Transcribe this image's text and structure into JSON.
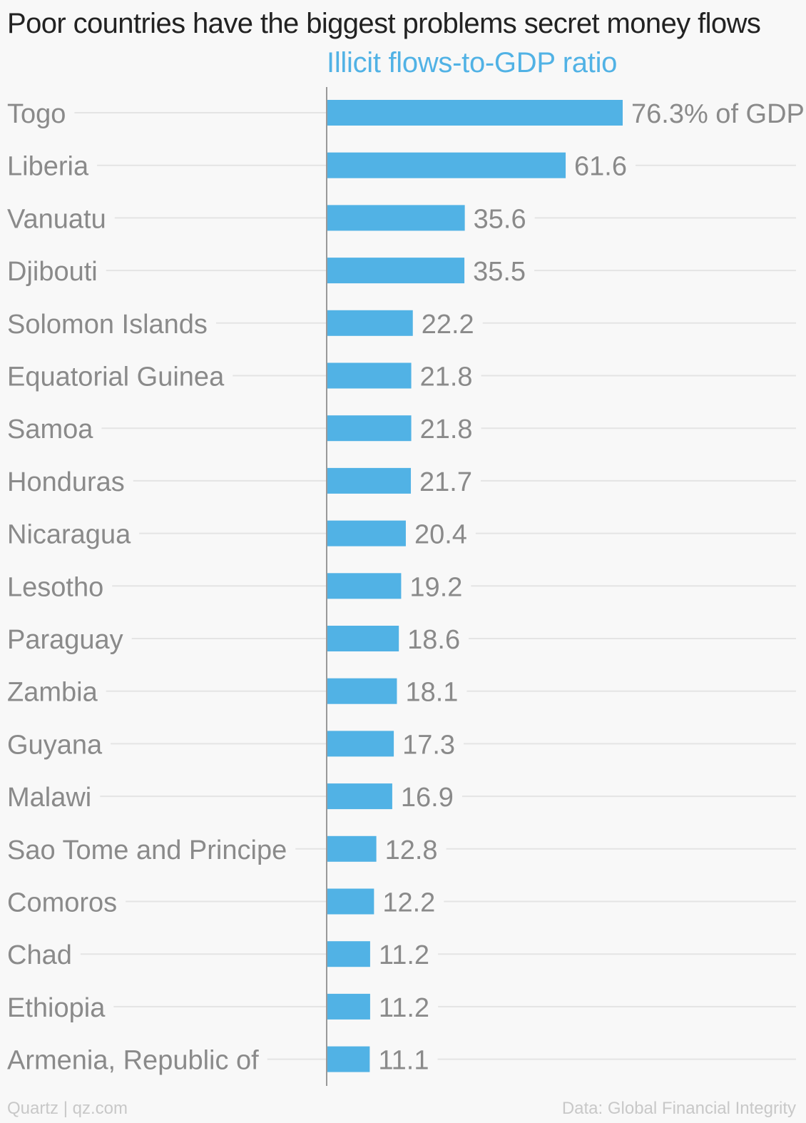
{
  "chart_data": {
    "type": "bar",
    "orientation": "horizontal",
    "title": "Poor countries have the biggest problems secret money flows",
    "series": [
      {
        "name": "Illicit flows-to-GDP ratio",
        "color": "#51b2e5",
        "values": [
          76.3,
          61.6,
          35.6,
          35.5,
          22.2,
          21.8,
          21.8,
          21.7,
          20.4,
          19.2,
          18.6,
          18.1,
          17.3,
          16.9,
          12.8,
          12.2,
          11.2,
          11.2,
          11.1
        ]
      }
    ],
    "categories": [
      "Togo",
      "Liberia",
      "Vanuatu",
      "Djibouti",
      "Solomon Islands",
      "Equatorial Guinea",
      "Samoa",
      "Honduras",
      "Nicaragua",
      "Lesotho",
      "Paraguay",
      "Zambia",
      "Guyana",
      "Malawi",
      "Sao Tome and Principe",
      "Comoros",
      "Chad",
      "Ethiopia",
      "Armenia, Republic of"
    ],
    "value_labels": [
      "76.3% of GDP",
      "61.6",
      "35.6",
      "35.5",
      "22.2",
      "21.8",
      "21.8",
      "21.7",
      "20.4",
      "19.2",
      "18.6",
      "18.1",
      "17.3",
      "16.9",
      "12.8",
      "12.2",
      "11.2",
      "11.2",
      "11.1"
    ],
    "xlim": [
      0,
      76.3
    ],
    "grid": true,
    "legend": "top"
  },
  "footer": {
    "source_left": "Quartz | qz.com",
    "source_right": "Data: Global Financial Integrity"
  }
}
